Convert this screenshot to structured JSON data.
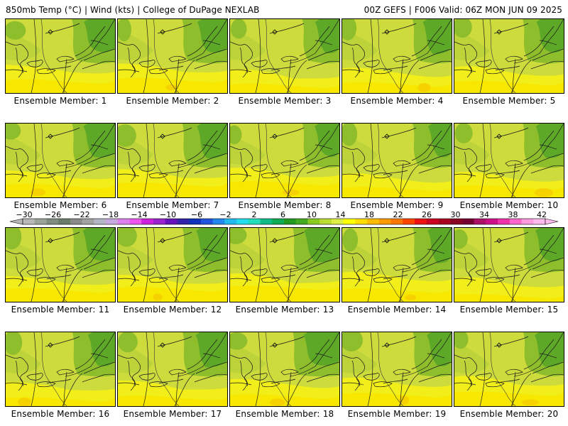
{
  "header": {
    "left": "850mb Temp (°C) | Wind (kts) | College of DuPage NEXLAB",
    "right": "00Z GEFS | F006 Valid: 06Z MON JUN 09 2025"
  },
  "colorbar": {
    "tick_labels": [
      "-30",
      "-26",
      "-22",
      "-18",
      "-14",
      "-10",
      "-6",
      "-2",
      "2",
      "6",
      "10",
      "14",
      "18",
      "22",
      "26",
      "30",
      "34",
      "38",
      "42"
    ],
    "colors": [
      "#b8b8b8",
      "#9aa39a",
      "#7f8c7f",
      "#6b7b6b",
      "#8a8a8a",
      "#a3a3a3",
      "#b5b5c8",
      "#c8a8e0",
      "#dd80ee",
      "#ee55ee",
      "#cc22dd",
      "#9922cc",
      "#6611bb",
      "#3322aa",
      "#1133bb",
      "#2255dd",
      "#2288ee",
      "#22bbee",
      "#22ddee",
      "#22ddbb",
      "#11bb88",
      "#11aa55",
      "#229922",
      "#44aa22",
      "#88cc22",
      "#bbdd33",
      "#ddee44",
      "#ffff00",
      "#ffdd00",
      "#ffbb00",
      "#ff9900",
      "#ff7700",
      "#ff4400",
      "#ee1111",
      "#cc0022",
      "#aa0022",
      "#880022",
      "#770033",
      "#aa1166",
      "#cc1188",
      "#ee33aa",
      "#ff66cc",
      "#ff99dd",
      "#ffbbee"
    ]
  },
  "panels": [
    {
      "label": "Ensemble Member: 1"
    },
    {
      "label": "Ensemble Member: 2"
    },
    {
      "label": "Ensemble Member: 3"
    },
    {
      "label": "Ensemble Member: 4"
    },
    {
      "label": "Ensemble Member: 5"
    },
    {
      "label": "Ensemble Member: 6"
    },
    {
      "label": "Ensemble Member: 7"
    },
    {
      "label": "Ensemble Member: 8"
    },
    {
      "label": "Ensemble Member: 9"
    },
    {
      "label": "Ensemble Member: 10"
    },
    {
      "label": "Ensemble Member: 11"
    },
    {
      "label": "Ensemble Member: 12"
    },
    {
      "label": "Ensemble Member: 13"
    },
    {
      "label": "Ensemble Member: 14"
    },
    {
      "label": "Ensemble Member: 15"
    },
    {
      "label": "Ensemble Member: 16"
    },
    {
      "label": "Ensemble Member: 17"
    },
    {
      "label": "Ensemble Member: 18"
    },
    {
      "label": "Ensemble Member: 19"
    },
    {
      "label": "Ensemble Member: 20"
    }
  ]
}
